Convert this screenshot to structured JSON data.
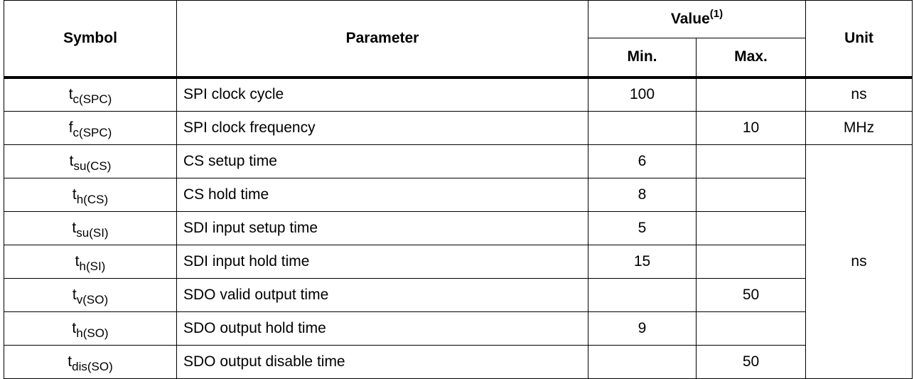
{
  "headers": {
    "symbol": "Symbol",
    "parameter": "Parameter",
    "value": "Value",
    "value_note": "(1)",
    "min": "Min.",
    "max": "Max.",
    "unit": "Unit"
  },
  "rows": [
    {
      "sym_base": "t",
      "sym_sub": "c(SPC)",
      "parameter": "SPI clock cycle",
      "min": "100",
      "max": "",
      "unit": "ns"
    },
    {
      "sym_base": "f",
      "sym_sub": "c(SPC)",
      "parameter": "SPI clock frequency",
      "min": "",
      "max": "10",
      "unit": "MHz"
    },
    {
      "sym_base": "t",
      "sym_sub": "su(CS)",
      "parameter": "CS setup time",
      "min": "6",
      "max": "",
      "unit": "ns"
    },
    {
      "sym_base": "t",
      "sym_sub": "h(CS)",
      "parameter": "CS hold time",
      "min": "8",
      "max": ""
    },
    {
      "sym_base": "t",
      "sym_sub": "su(SI)",
      "parameter": "SDI input setup time",
      "min": "5",
      "max": ""
    },
    {
      "sym_base": "t",
      "sym_sub": "h(SI)",
      "parameter": "SDI input hold time",
      "min": "15",
      "max": ""
    },
    {
      "sym_base": "t",
      "sym_sub": "v(SO)",
      "parameter": "SDO valid output time",
      "min": "",
      "max": "50"
    },
    {
      "sym_base": "t",
      "sym_sub": "h(SO)",
      "parameter": "SDO output hold time",
      "min": "9",
      "max": ""
    },
    {
      "sym_base": "t",
      "sym_sub": "dis(SO)",
      "parameter": "SDO output disable time",
      "min": "",
      "max": "50"
    }
  ]
}
